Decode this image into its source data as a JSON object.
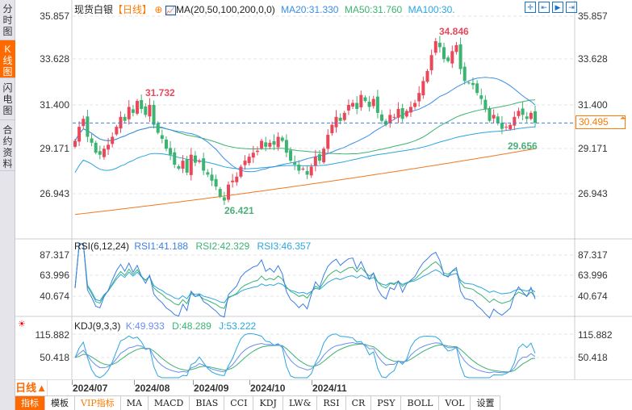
{
  "side_tabs": [
    "分时图",
    "K线图",
    "闪电图",
    "合约资料"
  ],
  "header": {
    "title": "现货白银",
    "period": "【日线】",
    "ma_label": "MA(20,50,100,200,0,0)",
    "ma20": "MA20:31.330",
    "ma50": "MA50:31.760",
    "ma100": "MA100:30."
  },
  "price_axis": [
    "35.857",
    "33.628",
    "31.400",
    "29.171",
    "26.943"
  ],
  "current_price": "30.495",
  "annotations": {
    "high": "34.846",
    "local_high": "31.732",
    "low": "26.421",
    "recent_low": "29.656"
  },
  "rsi": {
    "label": "RSI(6,12,24)",
    "rsi1": "RSI1:41.188",
    "rsi2": "RSI2:42.329",
    "rsi3": "RSI3:46.357",
    "axis": [
      "87.317",
      "63.996",
      "40.674"
    ]
  },
  "kdj": {
    "label": "KDJ(9,3,3)",
    "k": "K:49.933",
    "d": "D:48.289",
    "j": "J:53.222",
    "axis": [
      "115.882",
      "50.418"
    ]
  },
  "period_selector": "日线▲",
  "dates": [
    "2024/07",
    "2024/08",
    "2024/09",
    "2024/10",
    "2024/11"
  ],
  "bottom_tabs": [
    "指标",
    "模板",
    "VIP指标",
    "MA",
    "MACD",
    "BIAS",
    "CCI",
    "KDJ",
    "LW&",
    "RSI",
    "CR",
    "PSY",
    "BOLL",
    "VOL",
    "设置"
  ],
  "colors": {
    "up": "#e8485a",
    "down": "#3cb371",
    "ma20": "#3a8ee6",
    "ma50": "#3cb371",
    "ma100": "#2aa6e0",
    "ma200": "#f07820",
    "accent": "#ff6a00"
  },
  "chart_data": {
    "type": "candlestick",
    "closes": [
      29.6,
      30.3,
      30.7,
      29.8,
      29.5,
      29.0,
      28.9,
      29.2,
      29.4,
      29.8,
      30.3,
      30.8,
      30.6,
      31.3,
      31.0,
      31.6,
      31.2,
      30.9,
      31.4,
      30.4,
      30.0,
      29.7,
      29.2,
      28.9,
      28.4,
      28.2,
      28.6,
      28.0,
      28.9,
      28.5,
      28.6,
      28.1,
      27.9,
      27.6,
      27.3,
      26.8,
      26.6,
      27.4,
      27.6,
      27.8,
      28.3,
      28.6,
      28.8,
      29.0,
      29.1,
      29.6,
      29.3,
      29.5,
      29.4,
      29.8,
      29.6,
      29.0,
      28.6,
      28.4,
      28.1,
      28.2,
      27.9,
      28.3,
      28.8,
      28.6,
      29.2,
      29.9,
      30.4,
      30.8,
      30.6,
      31.0,
      31.4,
      31.5,
      31.2,
      31.9,
      31.6,
      31.3,
      31.7,
      31.0,
      30.6,
      30.4,
      30.9,
      30.8,
      31.2,
      30.7,
      31.1,
      31.3,
      31.5,
      32.0,
      32.6,
      33.1,
      33.9,
      34.6,
      34.3,
      33.7,
      33.6,
      34.1,
      34.4,
      33.2,
      32.6,
      32.5,
      32.4,
      32.0,
      31.7,
      31.2,
      30.6,
      30.9,
      30.5,
      30.2,
      30.3,
      30.4,
      30.8,
      31.1,
      30.9,
      30.7,
      31.0,
      30.5
    ],
    "ma200_range": [
      25.9,
      29.2
    ],
    "ylim": [
      26.943,
      35.857
    ]
  }
}
